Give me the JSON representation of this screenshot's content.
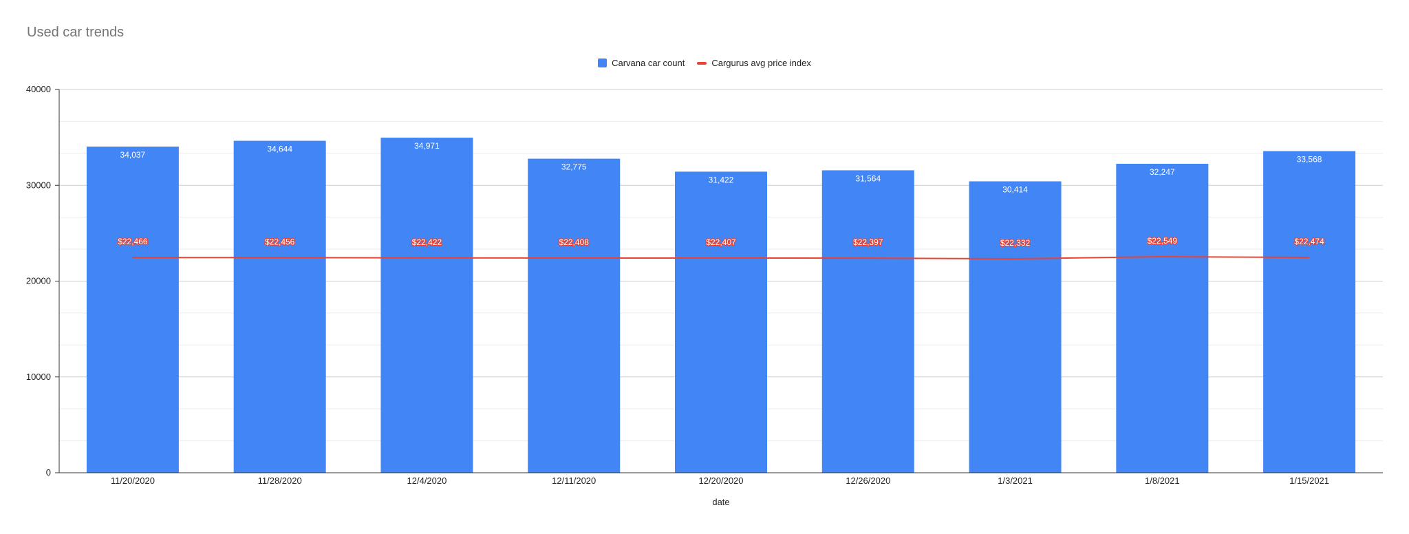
{
  "title": "Used car trends",
  "colors": {
    "bar": "#4285f4",
    "line": "#ea4335",
    "grid": "#e0e0e0",
    "axis": "#333333"
  },
  "chart_data": {
    "type": "bar",
    "title": "Used car trends",
    "xlabel": "date",
    "ylabel": "",
    "ylim": [
      0,
      40000
    ],
    "yticks": [
      0,
      10000,
      20000,
      30000,
      40000
    ],
    "categories": [
      "11/20/2020",
      "11/28/2020",
      "12/4/2020",
      "12/11/2020",
      "12/20/2020",
      "12/26/2020",
      "1/3/2021",
      "1/8/2021",
      "1/15/2021"
    ],
    "series": [
      {
        "name": "Carvana car count",
        "type": "bar",
        "values": [
          34037,
          34644,
          34971,
          32775,
          31422,
          31564,
          30414,
          32247,
          33568
        ],
        "labels": [
          "34,037",
          "34,644",
          "34,971",
          "32,775",
          "31,422",
          "31,564",
          "30,414",
          "32,247",
          "33,568"
        ]
      },
      {
        "name": "Cargurus avg price index",
        "type": "line",
        "values": [
          22466,
          22456,
          22422,
          22408,
          22407,
          22397,
          22332,
          22549,
          22474
        ],
        "labels": [
          "$22,466",
          "$22,456",
          "$22,422",
          "$22,408",
          "$22,407",
          "$22,397",
          "$22,332",
          "$22,549",
          "$22,474"
        ]
      }
    ],
    "legend_position": "top-center",
    "grid": true
  }
}
